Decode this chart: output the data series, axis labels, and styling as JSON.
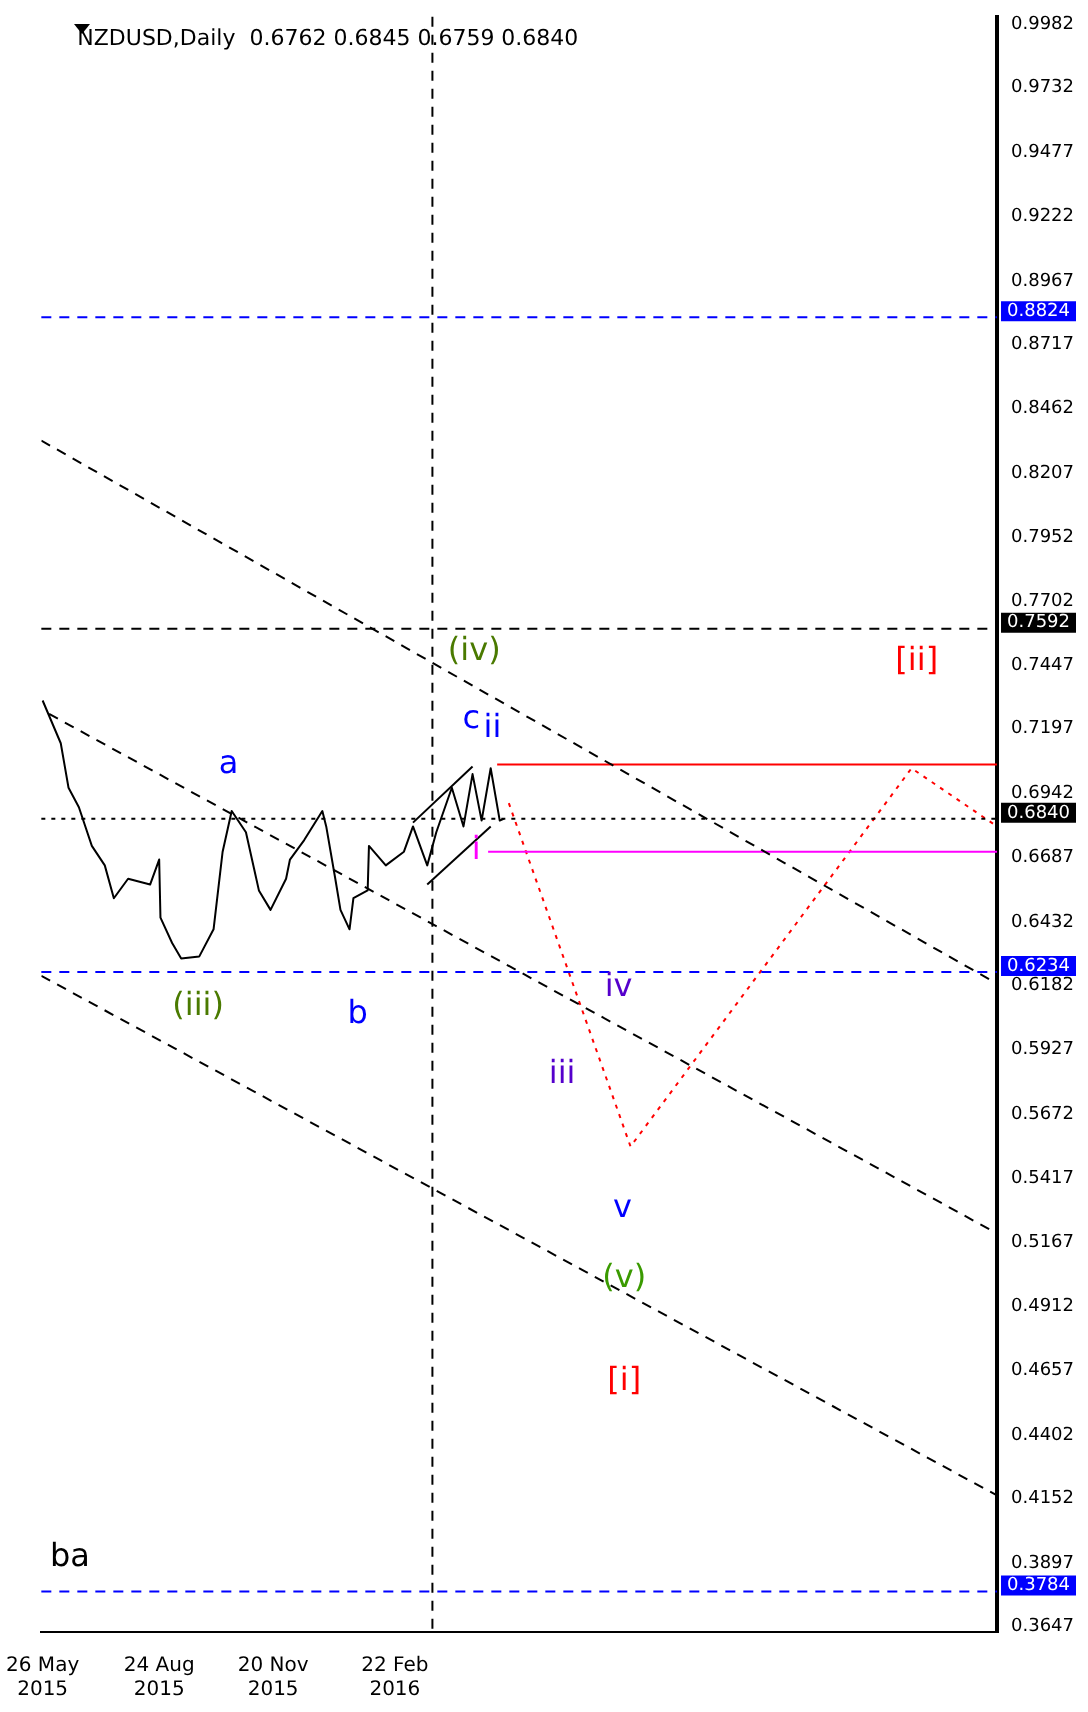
{
  "chart_data": {
    "type": "line",
    "title": "NZDUSD,Daily  0.6762 0.6845 0.6759 0.6840",
    "xlim": [
      "2015-05-25",
      "2017-06-01"
    ],
    "xticks": [
      {
        "value": "2015-05-26",
        "label": "26 May 2015"
      },
      {
        "value": "2015-08-24",
        "label": "24 Aug 2015"
      },
      {
        "value": "2015-11-20",
        "label": "20 Nov 2015"
      },
      {
        "value": "2016-02-22",
        "label": "22 Feb 2016"
      }
    ],
    "ylim": [
      0.3624,
      1.0012
    ],
    "yticks": [
      0.9982,
      0.9732,
      0.9477,
      0.9222,
      0.8967,
      0.8717,
      0.8462,
      0.8207,
      0.7952,
      0.7702,
      0.7447,
      0.7197,
      0.6942,
      0.6687,
      0.6432,
      0.6182,
      0.5927,
      0.5672,
      0.5417,
      0.5167,
      0.4912,
      0.4657,
      0.4402,
      0.4152,
      0.3897,
      0.3647
    ],
    "grid": false,
    "legend": false,
    "marker": "none",
    "series": [
      {
        "color": "#000000",
        "line_style": "solid",
        "x": [
          "2015-05-26",
          "2015-06-09",
          "2015-06-15",
          "2015-06-23",
          "2015-07-03",
          "2015-07-13",
          "2015-07-20",
          "2015-07-31",
          "2015-08-17",
          "2015-08-24",
          "2015-08-25",
          "2015-09-03",
          "2015-09-10",
          "2015-09-24",
          "2015-10-05",
          "2015-10-12",
          "2015-10-19",
          "2015-10-30",
          "2015-11-09",
          "2015-11-18",
          "2015-11-30",
          "2015-12-03",
          "2015-12-14",
          "2015-12-28",
          "2015-12-31",
          "2016-01-07",
          "2016-01-11",
          "2016-01-18",
          "2016-01-21",
          "2016-02-01",
          "2016-02-02",
          "2016-02-15",
          "2016-02-29",
          "2016-03-07",
          "2016-03-18",
          "2016-03-25",
          "2016-04-06",
          "2016-04-15",
          "2016-04-22",
          "2016-04-29",
          "2016-05-06",
          "2016-05-13",
          "2016-05-16"
        ],
        "values": [
          0.7308,
          0.7139,
          0.6963,
          0.6886,
          0.6733,
          0.6656,
          0.6526,
          0.6603,
          0.658,
          0.6679,
          0.6449,
          0.6349,
          0.6288,
          0.6296,
          0.6403,
          0.671,
          0.6871,
          0.6787,
          0.6557,
          0.648,
          0.6603,
          0.6679,
          0.6756,
          0.6871,
          0.681,
          0.6603,
          0.648,
          0.6403,
          0.6526,
          0.6557,
          0.6733,
          0.6656,
          0.671,
          0.681,
          0.6656,
          0.6787,
          0.6963,
          0.681,
          0.7017,
          0.6833,
          0.704,
          0.6833,
          0.684
        ]
      },
      {
        "color": "#000000",
        "line_style": "dashed",
        "x": [
          "2015-05-25",
          "2017-06-01"
        ],
        "values": [
          0.8336,
          0.6188
        ]
      },
      {
        "color": "#000000",
        "line_style": "dashed",
        "x": [
          "2015-05-31",
          "2017-06-01"
        ],
        "values": [
          0.7255,
          0.52
        ]
      },
      {
        "color": "#000000",
        "line_style": "dashed",
        "x": [
          "2015-05-25",
          "2017-06-01"
        ],
        "values": [
          0.6219,
          0.4164
        ]
      },
      {
        "color": "#000000",
        "line_style": "solid",
        "x": [
          "2016-03-07",
          "2016-04-22"
        ],
        "values": [
          0.6825,
          0.7047
        ]
      },
      {
        "color": "#000000",
        "line_style": "solid",
        "x": [
          "2016-03-18",
          "2016-05-06"
        ],
        "values": [
          0.658,
          0.681
        ]
      },
      {
        "color": "#ff0000",
        "line_style": "solid",
        "x": [
          "2016-05-11",
          "2017-06-01"
        ],
        "values": [
          0.7055,
          0.7055
        ]
      },
      {
        "color": "#ff00ff",
        "line_style": "solid",
        "x": [
          "2016-05-04",
          "2017-06-01"
        ],
        "values": [
          0.671,
          0.671
        ]
      },
      {
        "color": "#ff0000",
        "line_style": "dotted",
        "x": [
          "2016-05-20",
          "2016-08-22",
          "2017-03-27",
          "2017-06-01"
        ],
        "values": [
          0.6902,
          0.5544,
          0.704,
          0.681
        ]
      }
    ],
    "ref_lines": [
      {
        "axis": "y",
        "value": 0.8824,
        "label": "0.8824",
        "color": "#0000ff",
        "line_style": "dashed"
      },
      {
        "axis": "y",
        "value": 0.7592,
        "label": "0.7592",
        "color": "#000000",
        "line_style": "dashed"
      },
      {
        "axis": "y",
        "value": 0.6234,
        "label": "0.6234",
        "color": "#0000ff",
        "line_style": "dashed"
      },
      {
        "axis": "y",
        "value": 0.3784,
        "label": "0.3784",
        "color": "#0000ff",
        "line_style": "dashed"
      },
      {
        "axis": "y",
        "value": 0.684,
        "label": "0.6840",
        "color": "#000000",
        "line_style": "dotted"
      },
      {
        "axis": "x",
        "value": "2016-03-22",
        "color": "#000000",
        "line_style": "dashed"
      }
    ],
    "annotations": [
      "(iii)",
      "a",
      "b",
      "c",
      "ii",
      "(iv)",
      "i",
      "iii",
      "iv",
      "v",
      "(v)",
      "[i]",
      "[ii]",
      "ba"
    ]
  }
}
